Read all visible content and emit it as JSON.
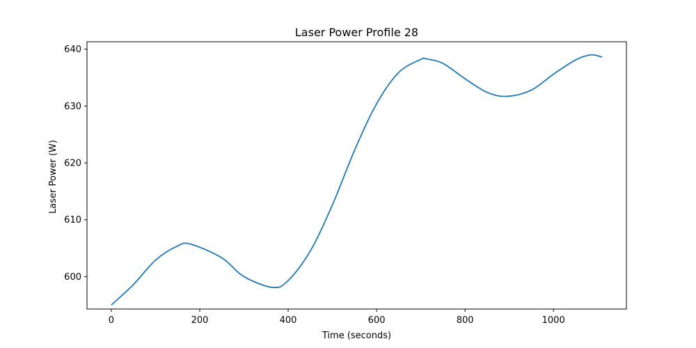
{
  "chart_data": {
    "type": "line",
    "title": "Laser Power Profile 28",
    "xlabel": "Time (seconds)",
    "ylabel": "Laser Power (W)",
    "xlim": [
      -55,
      1165
    ],
    "ylim": [
      594.3,
      641.3
    ],
    "xticks": [
      0,
      200,
      400,
      600,
      800,
      1000
    ],
    "yticks": [
      600,
      610,
      620,
      630,
      640
    ],
    "grid": false,
    "line_color": "#1f77b4",
    "series": [
      {
        "x": [
          0,
          50,
          100,
          150,
          180,
          250,
          300,
          365,
          400,
          450,
          500,
          550,
          600,
          650,
          700,
          712,
          750,
          800,
          850,
          895,
          950,
          1000,
          1050,
          1085,
          1110
        ],
        "y": [
          595.0,
          598.6,
          602.9,
          605.4,
          605.7,
          603.3,
          600.0,
          598.1,
          599.3,
          604.5,
          612.6,
          622.2,
          630.4,
          635.9,
          638.2,
          638.3,
          637.5,
          634.8,
          632.4,
          631.7,
          632.8,
          635.6,
          638.1,
          639.0,
          638.6
        ]
      }
    ]
  }
}
